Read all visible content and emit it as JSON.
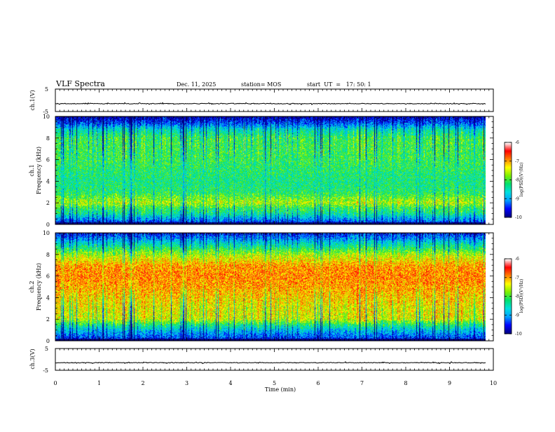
{
  "header": {
    "title": "VLF Spectra",
    "date": "Dec. 11, 2025",
    "station": "station= MOS",
    "start_ut": "start  UT  =   17: 50: 1"
  },
  "chart_data": [
    {
      "type": "line",
      "panel": "ch1-waveform",
      "ylabel": "ch.1(V)",
      "ylim": [
        -5,
        5
      ],
      "ytick_labels": [
        "5",
        "-5"
      ],
      "baseline": -1.5
    },
    {
      "type": "heatmap",
      "panel": "ch1-spectrogram",
      "ylabel_channel": "ch.1",
      "ylabel": "Frequency (kHz)",
      "ylim": [
        0,
        10
      ],
      "ytick_labels": [
        "10",
        "8",
        "6",
        "4",
        "2",
        "0"
      ],
      "profile_kHz_vs_logPSD": [
        [
          0,
          -9.6
        ],
        [
          0.5,
          -9.0
        ],
        [
          1,
          -8.4
        ],
        [
          1.5,
          -8.1
        ],
        [
          2,
          -7.6
        ],
        [
          3,
          -8.2
        ],
        [
          4,
          -8.3
        ],
        [
          5,
          -8.2
        ],
        [
          6,
          -8.1
        ],
        [
          7,
          -8.1
        ],
        [
          8,
          -8.1
        ],
        [
          8.8,
          -8.6
        ],
        [
          9.4,
          -9.4
        ],
        [
          10,
          -9.9
        ]
      ],
      "colorbar_label": "log(PSD)(V²/Hz)",
      "colorbar_range": [
        -10,
        -6
      ],
      "colorbar_tick_labels": [
        "-6",
        "-7",
        "-8",
        "-9",
        "-10"
      ]
    },
    {
      "type": "heatmap",
      "panel": "ch2-spectrogram",
      "ylabel_channel": "ch.2",
      "ylabel": "Frequency (kHz)",
      "ylim": [
        0,
        10
      ],
      "ytick_labels": [
        "10",
        "8",
        "6",
        "4",
        "2",
        "0"
      ],
      "profile_kHz_vs_logPSD": [
        [
          0,
          -9.6
        ],
        [
          0.5,
          -9.2
        ],
        [
          1,
          -8.8
        ],
        [
          1.5,
          -8.2
        ],
        [
          2,
          -7.5
        ],
        [
          3,
          -7.4
        ],
        [
          4,
          -7.2
        ],
        [
          5,
          -7.0
        ],
        [
          6,
          -6.9
        ],
        [
          7,
          -7.0
        ],
        [
          8,
          -7.6
        ],
        [
          9,
          -8.6
        ],
        [
          10,
          -9.6
        ]
      ],
      "colorbar_label": "log(PSD)(V²/Hz)",
      "colorbar_range": [
        -10,
        -6
      ],
      "colorbar_tick_labels": [
        "-6",
        "-7",
        "-8",
        "-9",
        "-10"
      ]
    },
    {
      "type": "line",
      "panel": "ch3-waveform",
      "ylabel": "ch.3(V)",
      "ylim": [
        -5,
        5
      ],
      "ytick_labels": [
        "5",
        "-5"
      ],
      "baseline": -1.5
    }
  ],
  "xaxis": {
    "label": "Time (min)",
    "range": [
      0,
      10
    ],
    "data_end": 9.83,
    "tick_values": [
      0,
      1,
      2,
      3,
      4,
      5,
      6,
      7,
      8,
      9,
      10
    ],
    "tick_labels": [
      "0",
      "1",
      "2",
      "3",
      "4",
      "5",
      "6",
      "7",
      "8",
      "9",
      "10"
    ]
  },
  "colors": {
    "colormap": [
      "#000080",
      "#0000ff",
      "#00a0ff",
      "#00e0e0",
      "#00e070",
      "#7cf000",
      "#ffff00",
      "#ff8000",
      "#ff0000",
      "#ffffff"
    ]
  }
}
